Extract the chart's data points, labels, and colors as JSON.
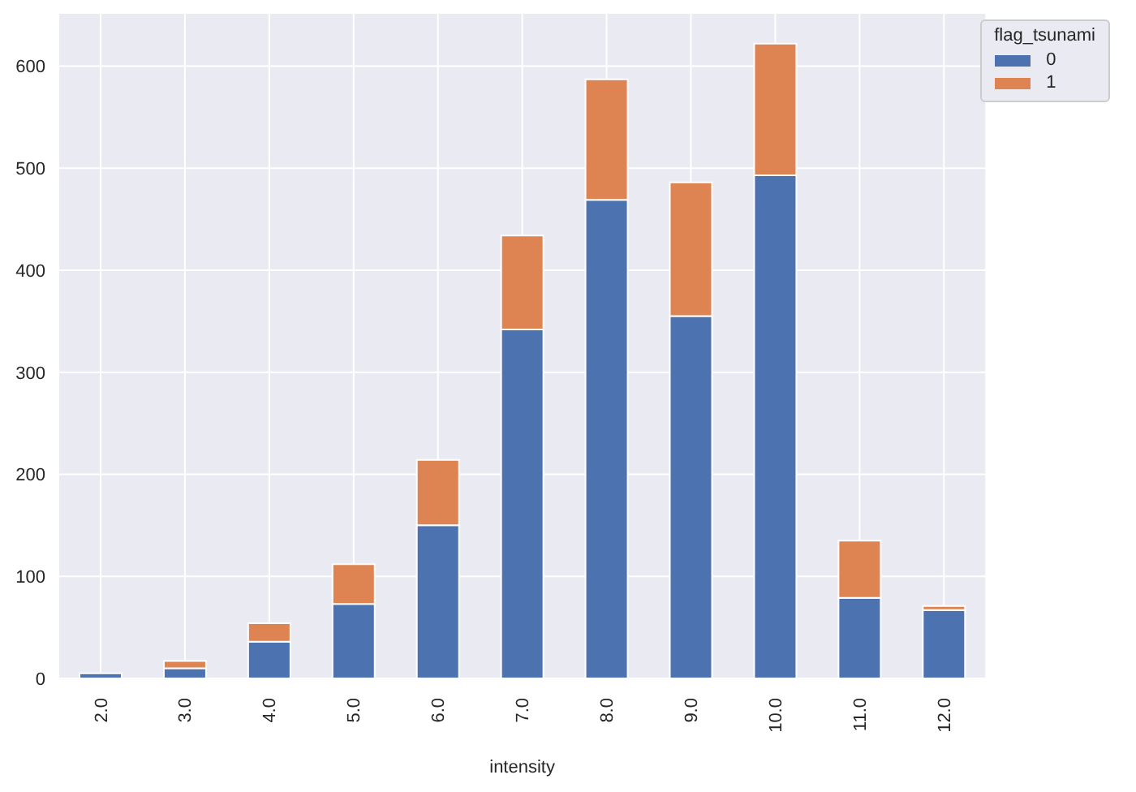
{
  "chart_data": {
    "type": "bar",
    "stacked": true,
    "xlabel": "intensity",
    "legend_title": "flag_tsunami",
    "categories": [
      "2.0",
      "3.0",
      "4.0",
      "5.0",
      "6.0",
      "7.0",
      "8.0",
      "9.0",
      "10.0",
      "11.0",
      "12.0"
    ],
    "series": [
      {
        "name": "0",
        "color": "#4c72b0",
        "values": [
          5,
          10,
          36,
          73,
          150,
          342,
          469,
          355,
          493,
          79,
          67
        ]
      },
      {
        "name": "1",
        "color": "#dd8452",
        "values": [
          0,
          7,
          18,
          39,
          64,
          92,
          118,
          131,
          129,
          56,
          4
        ]
      }
    ],
    "ylim": [
      0,
      652
    ],
    "yticks": [
      0,
      100,
      200,
      300,
      400,
      500,
      600
    ],
    "grid": true,
    "legend": "top right"
  }
}
